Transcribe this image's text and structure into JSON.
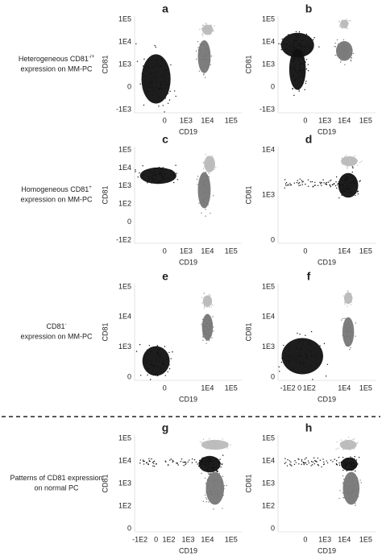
{
  "rows": [
    {
      "line1": "Heterogeneous CD81",
      "sup": "-/+",
      "line2": "expression on MM-PC"
    },
    {
      "line1": "Homogeneous CD81",
      "sup": "+",
      "line2": "expression on MM-PC"
    },
    {
      "line1": "CD81",
      "sup": "-",
      "line2": "expression on MM-PC"
    },
    {
      "line1": "Patterns of CD81 expression",
      "line2": "on normal PC"
    }
  ],
  "panels": [
    {
      "letter": "a",
      "y_label": "CD81",
      "x_label": "CD19",
      "yticks": [
        "1E5",
        "1E4",
        "1E3",
        "0",
        "-1E3"
      ],
      "xticks": [
        "0",
        "1E3",
        "1E4",
        "1E5"
      ]
    },
    {
      "letter": "b",
      "y_label": "CD81",
      "x_label": "CD19",
      "yticks": [
        "1E5",
        "1E4",
        "1E3",
        "0",
        "-1E3"
      ],
      "xticks": [
        "0",
        "1E3",
        "1E4",
        "1E5"
      ]
    },
    {
      "letter": "c",
      "y_label": "CD81",
      "x_label": "CD19",
      "yticks": [
        "1E5",
        "1E4",
        "1E3",
        "1E2",
        "0",
        "-1E2"
      ],
      "xticks": [
        "0",
        "1E3",
        "1E4",
        "1E5"
      ]
    },
    {
      "letter": "d",
      "y_label": "CD81",
      "x_label": "CD19",
      "yticks": [
        "1E4",
        "1E3",
        "0"
      ],
      "xticks": [
        "0",
        "1E4",
        "1E5"
      ]
    },
    {
      "letter": "e",
      "y_label": "CD81",
      "x_label": "CD19",
      "yticks": [
        "1E5",
        "1E4",
        "1E3",
        "0"
      ],
      "xticks": [
        "0",
        "1E4",
        "1E5"
      ]
    },
    {
      "letter": "f",
      "y_label": "CD81",
      "x_label": "CD19",
      "yticks": [
        "1E5",
        "1E4",
        "1E3",
        "0"
      ],
      "xticks": [
        "-1E2",
        "0",
        "1E2",
        "1E4",
        "1E5"
      ]
    },
    {
      "letter": "g",
      "y_label": "CD81",
      "x_label": "CD19",
      "yticks": [
        "1E5",
        "1E4",
        "1E3",
        "1E2",
        "0"
      ],
      "xticks": [
        "-1E2",
        "0",
        "1E2",
        "1E3",
        "1E4",
        "1E5"
      ]
    },
    {
      "letter": "h",
      "y_label": "CD81",
      "x_label": "CD19",
      "yticks": [
        "1E5",
        "1E4",
        "1E3",
        "1E2",
        "0"
      ],
      "xticks": [
        "0",
        "1E3",
        "1E4",
        "1E5"
      ]
    }
  ]
}
